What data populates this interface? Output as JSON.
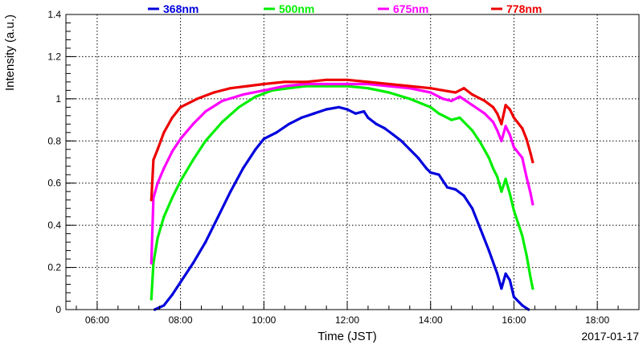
{
  "chart_data": {
    "type": "scatter",
    "title": "",
    "xlabel": "Time (JST)",
    "ylabel": "Intensity (a.u.)",
    "date": "2017-01-17",
    "xlim": [
      5.25,
      19.0
    ],
    "ylim": [
      0,
      1.4
    ],
    "x_ticks": [
      6,
      8,
      10,
      12,
      14,
      16,
      18
    ],
    "x_tick_labels": [
      "06:00",
      "08:00",
      "10:00",
      "12:00",
      "14:00",
      "16:00",
      "18:00"
    ],
    "y_ticks": [
      0,
      0.2,
      0.4,
      0.6,
      0.8,
      1,
      1.2,
      1.4
    ],
    "y_tick_labels": [
      "0",
      "0.2",
      "0.4",
      "0.6",
      "0.8",
      "1",
      "1.2",
      "1.4"
    ],
    "grid": true,
    "legend_position": "top",
    "series": [
      {
        "name": "368nm",
        "color": "#0000dd",
        "points": [
          [
            7.38,
            0.0
          ],
          [
            7.6,
            0.02
          ],
          [
            7.8,
            0.07
          ],
          [
            8.0,
            0.13
          ],
          [
            8.3,
            0.22
          ],
          [
            8.6,
            0.32
          ],
          [
            8.9,
            0.44
          ],
          [
            9.2,
            0.56
          ],
          [
            9.5,
            0.67
          ],
          [
            9.8,
            0.76
          ],
          [
            10.0,
            0.81
          ],
          [
            10.3,
            0.84
          ],
          [
            10.6,
            0.88
          ],
          [
            10.9,
            0.91
          ],
          [
            11.2,
            0.93
          ],
          [
            11.5,
            0.95
          ],
          [
            11.8,
            0.96
          ],
          [
            12.0,
            0.95
          ],
          [
            12.2,
            0.93
          ],
          [
            12.4,
            0.94
          ],
          [
            12.5,
            0.91
          ],
          [
            12.7,
            0.88
          ],
          [
            12.9,
            0.86
          ],
          [
            13.1,
            0.83
          ],
          [
            13.3,
            0.8
          ],
          [
            13.5,
            0.76
          ],
          [
            13.7,
            0.72
          ],
          [
            13.9,
            0.67
          ],
          [
            14.0,
            0.65
          ],
          [
            14.2,
            0.64
          ],
          [
            14.4,
            0.58
          ],
          [
            14.6,
            0.57
          ],
          [
            14.8,
            0.54
          ],
          [
            15.0,
            0.48
          ],
          [
            15.2,
            0.38
          ],
          [
            15.4,
            0.28
          ],
          [
            15.6,
            0.17
          ],
          [
            15.7,
            0.1
          ],
          [
            15.8,
            0.17
          ],
          [
            15.9,
            0.14
          ],
          [
            16.0,
            0.06
          ],
          [
            16.2,
            0.02
          ],
          [
            16.35,
            0.0
          ]
        ]
      },
      {
        "name": "500nm",
        "color": "#00ee00",
        "points": [
          [
            7.3,
            0.05
          ],
          [
            7.35,
            0.22
          ],
          [
            7.45,
            0.34
          ],
          [
            7.6,
            0.44
          ],
          [
            7.8,
            0.53
          ],
          [
            8.0,
            0.61
          ],
          [
            8.3,
            0.71
          ],
          [
            8.6,
            0.8
          ],
          [
            9.0,
            0.89
          ],
          [
            9.4,
            0.96
          ],
          [
            9.8,
            1.01
          ],
          [
            10.2,
            1.04
          ],
          [
            10.6,
            1.05
          ],
          [
            11.0,
            1.06
          ],
          [
            11.5,
            1.06
          ],
          [
            12.0,
            1.06
          ],
          [
            12.5,
            1.05
          ],
          [
            13.0,
            1.03
          ],
          [
            13.5,
            1.0
          ],
          [
            14.0,
            0.96
          ],
          [
            14.2,
            0.93
          ],
          [
            14.5,
            0.9
          ],
          [
            14.7,
            0.91
          ],
          [
            15.0,
            0.85
          ],
          [
            15.2,
            0.79
          ],
          [
            15.4,
            0.72
          ],
          [
            15.5,
            0.67
          ],
          [
            15.6,
            0.63
          ],
          [
            15.7,
            0.56
          ],
          [
            15.8,
            0.62
          ],
          [
            15.9,
            0.55
          ],
          [
            16.0,
            0.47
          ],
          [
            16.1,
            0.41
          ],
          [
            16.2,
            0.35
          ],
          [
            16.3,
            0.26
          ],
          [
            16.4,
            0.15
          ],
          [
            16.45,
            0.1
          ]
        ]
      },
      {
        "name": "675nm",
        "color": "#ff00ff",
        "points": [
          [
            7.3,
            0.22
          ],
          [
            7.35,
            0.53
          ],
          [
            7.45,
            0.6
          ],
          [
            7.6,
            0.67
          ],
          [
            7.8,
            0.75
          ],
          [
            8.0,
            0.81
          ],
          [
            8.3,
            0.88
          ],
          [
            8.6,
            0.94
          ],
          [
            9.0,
            0.99
          ],
          [
            9.5,
            1.02
          ],
          [
            10.0,
            1.04
          ],
          [
            10.5,
            1.06
          ],
          [
            11.0,
            1.07
          ],
          [
            11.5,
            1.07
          ],
          [
            12.0,
            1.07
          ],
          [
            12.5,
            1.07
          ],
          [
            13.0,
            1.06
          ],
          [
            13.5,
            1.05
          ],
          [
            14.0,
            1.03
          ],
          [
            14.3,
            1.0
          ],
          [
            14.5,
            0.99
          ],
          [
            14.7,
            1.01
          ],
          [
            15.0,
            0.97
          ],
          [
            15.3,
            0.93
          ],
          [
            15.5,
            0.89
          ],
          [
            15.6,
            0.85
          ],
          [
            15.7,
            0.8
          ],
          [
            15.8,
            0.87
          ],
          [
            15.9,
            0.83
          ],
          [
            16.0,
            0.77
          ],
          [
            16.2,
            0.72
          ],
          [
            16.3,
            0.63
          ],
          [
            16.4,
            0.55
          ],
          [
            16.45,
            0.5
          ]
        ]
      },
      {
        "name": "778nm",
        "color": "#ee0000",
        "points": [
          [
            7.3,
            0.52
          ],
          [
            7.35,
            0.71
          ],
          [
            7.45,
            0.76
          ],
          [
            7.6,
            0.84
          ],
          [
            7.8,
            0.91
          ],
          [
            8.0,
            0.96
          ],
          [
            8.4,
            1.0
          ],
          [
            8.8,
            1.03
          ],
          [
            9.2,
            1.05
          ],
          [
            9.6,
            1.06
          ],
          [
            10.0,
            1.07
          ],
          [
            10.5,
            1.08
          ],
          [
            11.0,
            1.08
          ],
          [
            11.5,
            1.09
          ],
          [
            12.0,
            1.09
          ],
          [
            12.5,
            1.08
          ],
          [
            13.0,
            1.07
          ],
          [
            13.5,
            1.06
          ],
          [
            14.0,
            1.05
          ],
          [
            14.3,
            1.04
          ],
          [
            14.6,
            1.03
          ],
          [
            14.8,
            1.05
          ],
          [
            15.0,
            1.02
          ],
          [
            15.3,
            0.99
          ],
          [
            15.5,
            0.96
          ],
          [
            15.6,
            0.93
          ],
          [
            15.7,
            0.88
          ],
          [
            15.8,
            0.97
          ],
          [
            15.9,
            0.95
          ],
          [
            16.0,
            0.91
          ],
          [
            16.2,
            0.86
          ],
          [
            16.3,
            0.81
          ],
          [
            16.4,
            0.74
          ],
          [
            16.45,
            0.7
          ]
        ]
      }
    ]
  }
}
